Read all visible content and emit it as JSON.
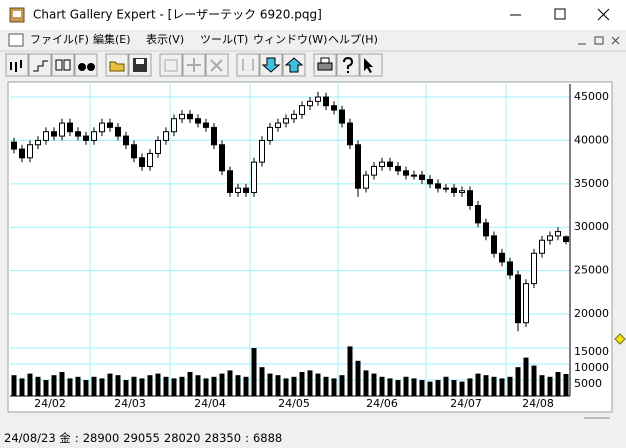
{
  "window": {
    "title": "Chart Gallery Expert - [レーザーテック 6920.pqg]"
  },
  "menu": {
    "items": [
      "ファイル(F)",
      "編集(E)",
      "表示(V)",
      "ツール(T)",
      "ウィンドウ(W)",
      "ヘルプ(H)"
    ]
  },
  "chart_data": {
    "type": "candlestick",
    "open": [
      39800,
      39000,
      38000,
      39500,
      40000,
      41000,
      40500,
      42000,
      41000,
      40500,
      40000,
      41000,
      42000,
      41500,
      40500,
      39500,
      38000,
      37000,
      38500,
      40000,
      41000,
      42500,
      43000,
      42500,
      42000,
      41500,
      39500,
      36500,
      34000,
      34500,
      34000,
      37500,
      40000,
      41500,
      42000,
      42500,
      43000,
      44000,
      44500,
      45000,
      44000,
      43500,
      42000,
      39500,
      34500,
      36000,
      37000,
      37500,
      37000,
      36500,
      36000,
      36000,
      35500,
      35000,
      34500,
      34500,
      34000,
      34200,
      32500,
      30500,
      29000,
      27000,
      26000,
      24500,
      19000,
      23500,
      27000,
      28500,
      29000,
      28900
    ],
    "high": [
      40300,
      39500,
      40000,
      40500,
      41500,
      41500,
      42500,
      42500,
      41500,
      41000,
      41500,
      42500,
      42500,
      42000,
      41000,
      40000,
      38500,
      39000,
      40500,
      41500,
      43000,
      43500,
      43500,
      43000,
      42500,
      42000,
      40000,
      37000,
      35000,
      35000,
      38000,
      40500,
      42000,
      42500,
      43000,
      43500,
      44500,
      45000,
      45600,
      45500,
      44500,
      44000,
      42500,
      40000,
      36500,
      37500,
      38000,
      38000,
      37500,
      37000,
      36500,
      36500,
      36000,
      35500,
      35000,
      35000,
      34700,
      34700,
      33000,
      31000,
      29500,
      27500,
      26500,
      25000,
      24000,
      27500,
      29000,
      29500,
      30000,
      29055
    ],
    "low": [
      38500,
      37500,
      37500,
      39000,
      39500,
      40000,
      40000,
      40500,
      40000,
      39500,
      39500,
      40500,
      41000,
      40000,
      39000,
      37500,
      36500,
      36500,
      38000,
      39500,
      40500,
      42000,
      42000,
      41500,
      41000,
      39000,
      36000,
      33500,
      33500,
      33500,
      33500,
      37000,
      39500,
      41000,
      41500,
      42000,
      42500,
      43500,
      44000,
      43500,
      43000,
      41500,
      39000,
      33500,
      34000,
      35500,
      36500,
      36500,
      36000,
      35500,
      35500,
      35000,
      34500,
      34000,
      34000,
      33500,
      33500,
      32000,
      30000,
      28500,
      26500,
      25500,
      24000,
      18000,
      18500,
      23000,
      26500,
      28000,
      28500,
      28020
    ],
    "close": [
      39000,
      38000,
      39500,
      40000,
      41000,
      40500,
      42000,
      41000,
      40500,
      40000,
      41000,
      42000,
      41500,
      40500,
      39500,
      38000,
      37000,
      38500,
      40000,
      41000,
      42500,
      43000,
      42500,
      42000,
      41500,
      39500,
      36500,
      34000,
      34500,
      34000,
      37500,
      40000,
      41500,
      42000,
      42500,
      43000,
      44000,
      44500,
      45000,
      44000,
      43500,
      42000,
      39500,
      34500,
      36000,
      37000,
      37500,
      37000,
      36500,
      36000,
      36000,
      35500,
      35000,
      34500,
      34500,
      34000,
      34200,
      32500,
      30500,
      29000,
      27000,
      26000,
      24500,
      19000,
      23500,
      27000,
      28500,
      29000,
      29500,
      28350
    ],
    "volume": [
      6500,
      5500,
      7000,
      6000,
      5000,
      6500,
      7500,
      5500,
      6000,
      5000,
      6000,
      5500,
      7000,
      6500,
      5000,
      6000,
      5500,
      6500,
      7000,
      6000,
      5500,
      6000,
      7500,
      6500,
      5500,
      6000,
      7000,
      8000,
      6500,
      6000,
      15000,
      9000,
      7000,
      6500,
      5500,
      6000,
      7500,
      8000,
      7000,
      6000,
      5500,
      6500,
      15500,
      11000,
      8000,
      7000,
      6000,
      5500,
      5000,
      6000,
      5500,
      5000,
      4500,
      5000,
      6000,
      5000,
      4500,
      5500,
      7000,
      6500,
      6000,
      5500,
      6000,
      9000,
      12000,
      9500,
      6500,
      6000,
      7500,
      6888
    ],
    "months": [
      {
        "label": "24/02",
        "start": 0,
        "end": 10
      },
      {
        "label": "24/03",
        "start": 10,
        "end": 20
      },
      {
        "label": "24/04",
        "start": 20,
        "end": 30
      },
      {
        "label": "24/05",
        "start": 30,
        "end": 41
      },
      {
        "label": "24/06",
        "start": 41,
        "end": 52
      },
      {
        "label": "24/07",
        "start": 52,
        "end": 62
      },
      {
        "label": "24/08",
        "start": 62,
        "end": 70
      }
    ],
    "ylim": [
      15000,
      46500
    ],
    "yticks": [
      20000,
      25000,
      30000,
      35000,
      40000,
      45000
    ],
    "y2lim": [
      0,
      15000
    ],
    "y2ticks": [
      5000,
      10000,
      15000
    ],
    "grid": true,
    "grid_color": "#9cf0f8",
    "up_color": "#ffffff",
    "down_color": "#000000",
    "volume_color": "#000000"
  },
  "status": {
    "date": "24/08/23 金",
    "separator": ":"
  }
}
